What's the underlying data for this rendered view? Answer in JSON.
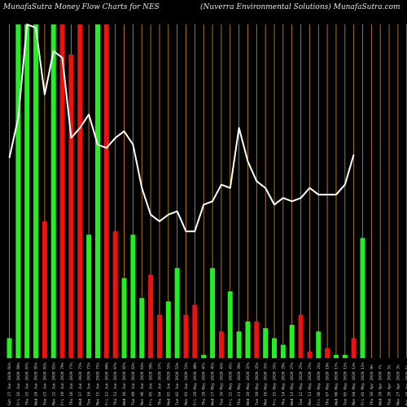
{
  "chart_data": {
    "type": "bar",
    "title_left": "MunafaSutra Money Flow Charts for NES",
    "title_right": "(Nuverra  Environmental Solutions) MunafaSutra.com",
    "categories": [
      "Sat 27 Jun 2020 91%",
      "Fri 26 Jun 2020 89%",
      "Thu 25 Jun 2020 87%",
      "Wed 24 Jun 2020 85%",
      "Tue 23 Jun 2020 83%",
      "Mon 22 Jun 2020 81%",
      "Fri 19 Jun 2020 79%",
      "Thu 18 Jun 2020 77%",
      "Wed 17 Jun 2020 75%",
      "Tue 16 Jun 2020 73%",
      "Mon 15 Jun 2020 71%",
      "Fri 12 Jun 2020 69%",
      "Thu 11 Jun 2020 67%",
      "Wed 10 Jun 2020 65%",
      "Tue 09 Jun 2020 63%",
      "Mon 08 Jun 2020 61%",
      "Fri 05 Jun 2020 59%",
      "Thu 04 Jun 2020 57%",
      "Wed 03 Jun 2020 55%",
      "Tue 02 Jun 2020 53%",
      "Mon 01 Jun 2020 51%",
      "Fri 29 May 2020 49%",
      "Thu 28 May 2020 47%",
      "Wed 27 May 2020 45%",
      "Tue 26 May 2020 43%",
      "Fri 22 May 2020 41%",
      "Thu 21 May 2020 39%",
      "Wed 20 May 2020 37%",
      "Tue 19 May 2020 35%",
      "Mon 18 May 2020 33%",
      "Fri 15 May 2020 31%",
      "Thu 14 May 2020 29%",
      "Wed 13 May 2020 27%",
      "Tue 12 May 2020 25%",
      "Mon 11 May 2020 23%",
      "Fri 08 May 2020 21%",
      "Thu 07 May 2020 19%",
      "Wed 06 May 2020 17%",
      "Tue 05 May 2020 15%",
      "Mon 04 May 2020 13%",
      "Fri 01 May 2020 11%",
      "Thu 30 Apr 2020 9%",
      "Wed 29 Apr 2020 7%",
      "Tue 28 Apr 2020 5%",
      "Mon 27 Apr 2020 3%",
      "Fri 24 Apr 2020 1%"
    ],
    "bar_direction": [
      "up",
      "up",
      "up",
      "up",
      "down",
      "up",
      "down",
      "down",
      "down",
      "up",
      "up",
      "down",
      "down",
      "up",
      "up",
      "up",
      "down",
      "down",
      "up",
      "up",
      "down",
      "down",
      "up",
      "up",
      "down",
      "up",
      "up",
      "up",
      "down",
      "up",
      "up",
      "up",
      "up",
      "down",
      "down",
      "up",
      "down",
      "up",
      "up",
      "down",
      "up",
      "down",
      "up",
      "up",
      "up",
      "up"
    ],
    "bar_values": [
      6,
      100,
      100,
      100,
      41,
      100,
      100,
      91,
      100,
      37,
      100,
      100,
      38,
      24,
      37,
      18,
      25,
      13,
      17,
      27,
      13,
      16,
      1,
      27,
      8,
      20,
      8,
      11,
      11,
      9,
      6,
      4,
      10,
      13,
      2,
      8,
      3,
      1,
      1,
      6,
      36,
      0,
      0,
      0,
      0,
      0
    ],
    "line_values": [
      60,
      72,
      100,
      99,
      79,
      92,
      90,
      66,
      69,
      73,
      64,
      63,
      66,
      68,
      64,
      51,
      43,
      41,
      43,
      44,
      38,
      38,
      46,
      47,
      52,
      51,
      69,
      59,
      53,
      51,
      46,
      48,
      47,
      48,
      51,
      49,
      49,
      49,
      52,
      61,
      0,
      0,
      0,
      0,
      0,
      0
    ],
    "colors": {
      "up": "#22ee22",
      "down": "#ee1111",
      "line": "#ffffff",
      "grid": "#d98a2a",
      "background": "#000000"
    },
    "ylim": [
      0,
      100
    ],
    "grid": true,
    "legend": "none"
  }
}
